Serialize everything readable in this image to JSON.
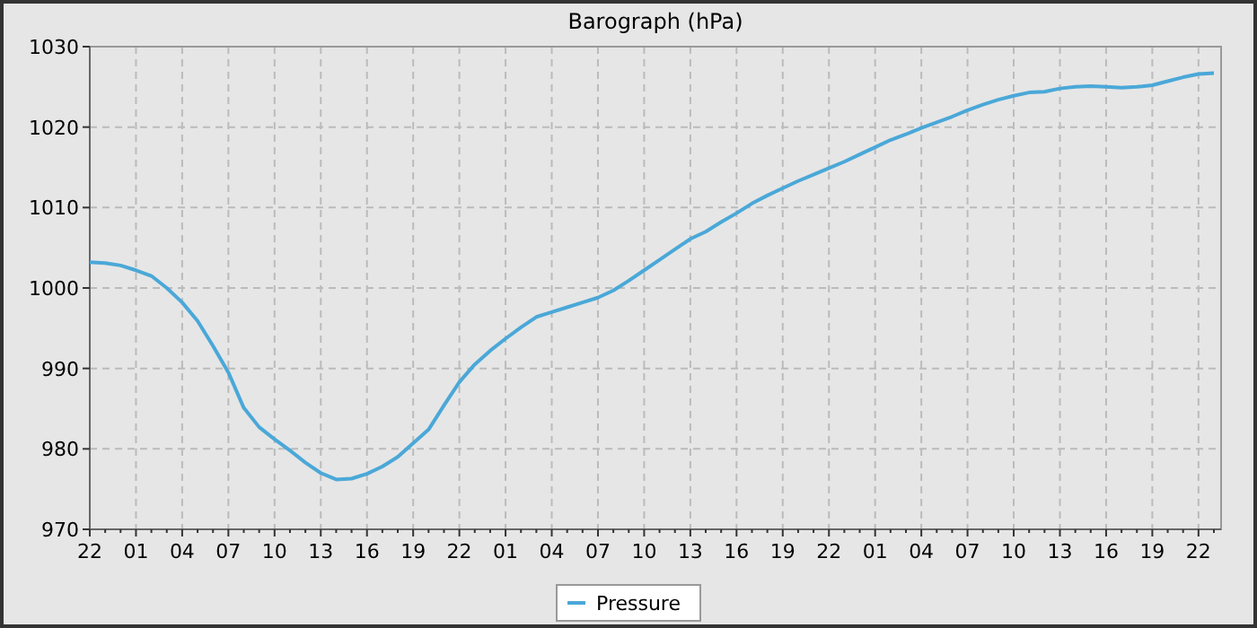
{
  "chart_data": {
    "type": "line",
    "title": "Barograph (hPa)",
    "categories": [
      "22",
      null,
      null,
      "01",
      null,
      null,
      "04",
      null,
      null,
      "07",
      null,
      null,
      "10",
      null,
      null,
      "13",
      null,
      null,
      "16",
      null,
      null,
      "19",
      null,
      null,
      "22",
      null,
      null,
      "01",
      null,
      null,
      "04",
      null,
      null,
      "07",
      null,
      null,
      "10",
      null,
      null,
      "13",
      null,
      null,
      "16",
      null,
      null,
      "19",
      null,
      null,
      "22",
      null,
      null,
      "01",
      null,
      null,
      "04",
      null,
      null,
      "07",
      null,
      null,
      "10",
      null,
      null,
      "13",
      null,
      null,
      "16",
      null,
      null,
      "19",
      null,
      null,
      "22",
      null
    ],
    "ylim": [
      970,
      1030
    ],
    "yticks": [
      970,
      980,
      990,
      1000,
      1010,
      1020,
      1030
    ],
    "grid": true,
    "legend": "bottom",
    "line_style": "solid",
    "marker": "none",
    "series": [
      {
        "name": "Pressure",
        "color": "#4aa8d8",
        "values": [
          1003.2,
          1003.1,
          1002.8,
          1002.2,
          1001.5,
          1000.0,
          998.2,
          995.9,
          992.8,
          989.5,
          985.1,
          982.7,
          981.2,
          979.8,
          978.3,
          977.0,
          976.2,
          976.3,
          976.9,
          977.8,
          979.0,
          980.7,
          982.4,
          985.4,
          988.3,
          990.5,
          992.2,
          993.7,
          995.1,
          996.4,
          997.0,
          997.6,
          998.2,
          998.8,
          999.7,
          1000.9,
          1002.2,
          1003.5,
          1004.8,
          1006.1,
          1007.0,
          1008.2,
          1009.3,
          1010.5,
          1011.5,
          1012.4,
          1013.3,
          1014.1,
          1014.9,
          1015.7,
          1016.6,
          1017.5,
          1018.4,
          1019.1,
          1019.9,
          1020.6,
          1021.3,
          1022.1,
          1022.8,
          1023.4,
          1023.9,
          1024.3,
          1024.4,
          1024.8,
          1025.0,
          1025.1,
          1025.0,
          1024.9,
          1025.0,
          1025.2,
          1025.7,
          1026.2,
          1026.6,
          1026.7
        ]
      }
    ]
  }
}
